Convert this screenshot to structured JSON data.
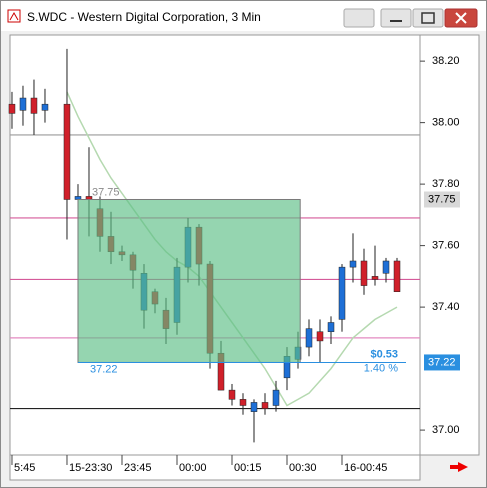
{
  "window_title": "S.WDC - Western Digital Corporation, 3 Min",
  "chart_data": {
    "type": "candlestick",
    "x": [
      0,
      1,
      2,
      3,
      5,
      6,
      7,
      8,
      9,
      10,
      11,
      12,
      13,
      14,
      15,
      16,
      17,
      18,
      19,
      20,
      21,
      22,
      23,
      24,
      25,
      26,
      27,
      28,
      29,
      30,
      31,
      32,
      33,
      34,
      35
    ],
    "open": [
      38.06,
      38.04,
      38.08,
      38.04,
      38.06,
      37.75,
      37.76,
      37.72,
      37.63,
      37.58,
      37.57,
      37.39,
      37.45,
      37.39,
      37.35,
      37.53,
      37.66,
      37.54,
      37.25,
      37.13,
      37.1,
      37.06,
      37.09,
      37.08,
      37.17,
      37.23,
      37.27,
      37.32,
      37.32,
      37.36,
      37.53,
      37.55,
      37.5,
      37.51,
      37.55
    ],
    "high": [
      38.1,
      38.12,
      38.14,
      38.11,
      38.24,
      37.8,
      37.92,
      37.76,
      37.71,
      37.6,
      37.58,
      37.54,
      37.46,
      37.43,
      37.56,
      37.69,
      37.67,
      37.55,
      37.29,
      37.15,
      37.12,
      37.1,
      37.12,
      37.16,
      37.27,
      37.32,
      37.36,
      37.36,
      37.37,
      37.54,
      37.64,
      37.59,
      37.6,
      37.56,
      37.56
    ],
    "low": [
      37.98,
      37.99,
      37.96,
      38.0,
      37.62,
      37.7,
      37.63,
      37.58,
      37.54,
      37.55,
      37.46,
      37.33,
      37.38,
      37.28,
      37.31,
      37.48,
      37.47,
      37.2,
      37.13,
      37.08,
      37.05,
      36.96,
      37.05,
      37.06,
      37.13,
      37.2,
      37.24,
      37.22,
      37.28,
      37.32,
      37.48,
      37.44,
      37.47,
      37.48,
      37.45
    ],
    "close": [
      38.03,
      38.08,
      38.03,
      38.06,
      37.75,
      37.76,
      37.75,
      37.63,
      37.58,
      37.57,
      37.52,
      37.51,
      37.41,
      37.33,
      37.53,
      37.66,
      37.54,
      37.25,
      37.13,
      37.1,
      37.08,
      37.09,
      37.07,
      37.13,
      37.24,
      37.27,
      37.33,
      37.29,
      37.35,
      37.53,
      37.55,
      37.47,
      37.49,
      37.55,
      37.45
    ],
    "up_color": "#1e6fd6",
    "down_color": "#d0202a",
    "ma": {
      "color": "#b5d9b0",
      "values": [
        null,
        null,
        null,
        null,
        38.1,
        38.02,
        37.95,
        37.88,
        37.82,
        37.77,
        37.72,
        37.67,
        37.62,
        37.58,
        37.55,
        37.53,
        37.5,
        37.45,
        37.4,
        37.35,
        37.3,
        37.25,
        37.2,
        37.14,
        37.08,
        37.1,
        37.12,
        37.16,
        37.2,
        37.25,
        37.3,
        37.33,
        37.36,
        37.38,
        37.4
      ]
    },
    "levels": [
      {
        "value": 37.96,
        "color": "#9a9a9a"
      },
      {
        "value": 37.69,
        "color": "#d55a9a"
      },
      {
        "value": 37.49,
        "color": "#d55a9a"
      },
      {
        "value": 37.3,
        "color": "#e38ac0"
      },
      {
        "value": 37.07,
        "color": "#222222"
      }
    ],
    "range_box": {
      "x_start": 6,
      "x_end": 26.2,
      "color": "#5cbf85",
      "top": {
        "value": 37.75,
        "label": "37.75"
      },
      "bottom": {
        "value": 37.22,
        "label": "37.22"
      },
      "change_label": "$0.53",
      "percent_label": "1.40 %"
    },
    "price_markers": [
      {
        "value": 37.75,
        "label": "37.75",
        "color": "#d8d8d8"
      },
      {
        "value": 37.22,
        "label": "37.22",
        "color": "#2a8fe0"
      }
    ],
    "xlim": [
      -0.18,
      37.09
    ],
    "xticks": [
      {
        "value": 0,
        "label": "5:45"
      },
      {
        "value": 5,
        "label": "15-23:30"
      },
      {
        "value": 10,
        "label": "23:45"
      },
      {
        "value": 15,
        "label": "00:00"
      },
      {
        "value": 20,
        "label": "00:15"
      },
      {
        "value": 25,
        "label": "00:30"
      },
      {
        "value": 30,
        "label": "16-00:45"
      }
    ],
    "ylim": [
      36.919,
      38.285
    ],
    "yticks": [
      {
        "value": 38.2,
        "label": "38.20"
      },
      {
        "value": 38.0,
        "label": "38.00"
      },
      {
        "value": 37.8,
        "label": "37.80"
      },
      {
        "value": 37.6,
        "label": "37.60"
      },
      {
        "value": 37.4,
        "label": "37.40"
      },
      {
        "value": 37.0,
        "label": "37.00"
      }
    ]
  }
}
